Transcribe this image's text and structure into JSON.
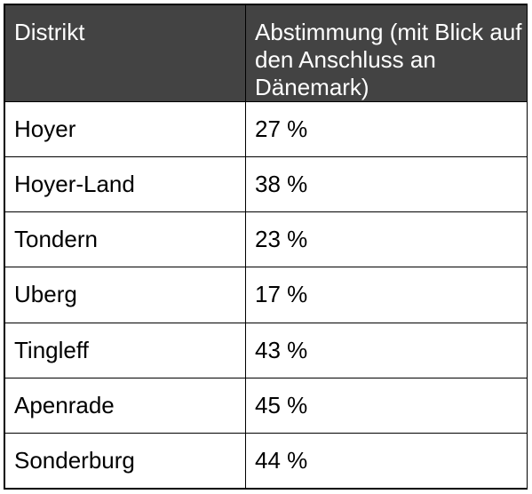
{
  "table": {
    "headers": [
      "Distrikt",
      "Abstimmung (mit Blick auf den Anschluss an Dänemark)"
    ],
    "rows": [
      [
        "Hoyer",
        "27 %"
      ],
      [
        "Hoyer-Land",
        "38 %"
      ],
      [
        "Tondern",
        "23 %"
      ],
      [
        "Uberg",
        "17 %"
      ],
      [
        "Tingleff",
        "43 %"
      ],
      [
        "Apenrade",
        "45 %"
      ],
      [
        "Sonderburg",
        "44 %"
      ]
    ]
  },
  "colors": {
    "header_background": "#434343",
    "header_text": "#ffffff",
    "border": "#000000"
  }
}
